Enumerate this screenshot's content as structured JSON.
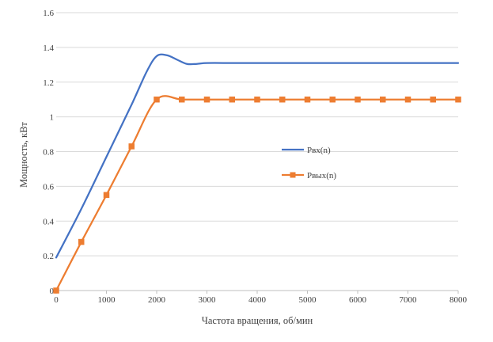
{
  "chart_data": {
    "type": "line",
    "title": "",
    "xlabel": "Частота вращения, об/мин",
    "ylabel": "Мощность, кВт",
    "xlim": [
      0,
      8000
    ],
    "ylim": [
      0,
      1.6
    ],
    "xticks": [
      "0",
      "1000",
      "2000",
      "3000",
      "4000",
      "5000",
      "6000",
      "7000",
      "8000"
    ],
    "yticks": [
      "0",
      "0.2",
      "0.4",
      "0.6",
      "0.8",
      "1",
      "1.2",
      "1.4",
      "1.6"
    ],
    "grid": "horizontal",
    "legend": "right",
    "series": [
      {
        "name": "Pвх(n)",
        "color": "#4472c4",
        "marker": "none",
        "x": [
          0,
          500,
          1000,
          1500,
          1800,
          2000,
          2200,
          2400,
          2600,
          2800,
          3000,
          3500,
          4000,
          4500,
          5000,
          5500,
          6000,
          6500,
          7000,
          7500,
          8000
        ],
        "y": [
          0.19,
          0.47,
          0.77,
          1.07,
          1.26,
          1.35,
          1.355,
          1.33,
          1.305,
          1.305,
          1.31,
          1.31,
          1.31,
          1.31,
          1.31,
          1.31,
          1.31,
          1.31,
          1.31,
          1.31,
          1.31
        ]
      },
      {
        "name": "Pвых(n)",
        "color": "#ed7d31",
        "marker": "square",
        "x": [
          0,
          500,
          1000,
          1500,
          2000,
          2500,
          3000,
          3500,
          4000,
          4500,
          5000,
          5500,
          6000,
          6500,
          7000,
          7500,
          8000
        ],
        "y": [
          0.0,
          0.28,
          0.55,
          0.83,
          1.1,
          1.1,
          1.1,
          1.1,
          1.1,
          1.1,
          1.1,
          1.1,
          1.1,
          1.1,
          1.1,
          1.1,
          1.1
        ]
      }
    ]
  }
}
